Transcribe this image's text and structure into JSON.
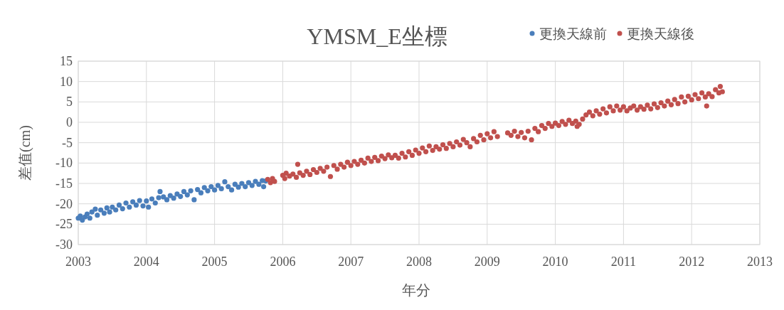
{
  "chart_data": {
    "type": "scatter",
    "title": "YMSM_E坐標",
    "xlabel": "年分",
    "ylabel": "差值(cm)",
    "xlim": [
      2003,
      2013
    ],
    "ylim": [
      -30,
      15
    ],
    "xticks": [
      2003,
      2004,
      2005,
      2006,
      2007,
      2008,
      2009,
      2010,
      2011,
      2012,
      2013
    ],
    "yticks": [
      -30,
      -25,
      -20,
      -15,
      -10,
      -5,
      0,
      5,
      10,
      15
    ],
    "grid": true,
    "legend": "top right",
    "marker": "circle",
    "series": [
      {
        "name": "更換天線前",
        "color": "#4a7ebb",
        "x": [
          2003.0,
          2003.03,
          2003.06,
          2003.1,
          2003.13,
          2003.17,
          2003.2,
          2003.25,
          2003.28,
          2003.33,
          2003.38,
          2003.42,
          2003.46,
          2003.5,
          2003.55,
          2003.6,
          2003.65,
          2003.7,
          2003.75,
          2003.8,
          2003.85,
          2003.9,
          2003.95,
          2004.0,
          2004.03,
          2004.08,
          2004.13,
          2004.18,
          2004.2,
          2004.25,
          2004.3,
          2004.35,
          2004.4,
          2004.45,
          2004.5,
          2004.55,
          2004.6,
          2004.65,
          2004.7,
          2004.75,
          2004.8,
          2004.85,
          2004.9,
          2004.95,
          2005.0,
          2005.05,
          2005.1,
          2005.15,
          2005.2,
          2005.25,
          2005.3,
          2005.35,
          2005.4,
          2005.45,
          2005.5,
          2005.55,
          2005.6,
          2005.65,
          2005.7,
          2005.72,
          2005.75
        ],
        "values": [
          -23.5,
          -23.0,
          -24.0,
          -23.2,
          -22.5,
          -23.5,
          -22.0,
          -21.3,
          -22.8,
          -21.5,
          -22.3,
          -21.0,
          -22.0,
          -20.8,
          -21.5,
          -20.3,
          -21.2,
          -19.8,
          -20.8,
          -19.5,
          -20.3,
          -19.2,
          -20.5,
          -19.3,
          -20.8,
          -18.8,
          -19.8,
          -18.5,
          -17.0,
          -18.3,
          -19.0,
          -18.0,
          -18.6,
          -17.6,
          -18.2,
          -17.0,
          -17.8,
          -16.8,
          -19.0,
          -16.5,
          -17.3,
          -16.0,
          -16.8,
          -15.8,
          -16.6,
          -15.5,
          -16.3,
          -14.6,
          -15.8,
          -16.6,
          -15.2,
          -15.9,
          -15.0,
          -15.8,
          -14.8,
          -15.5,
          -14.5,
          -15.2,
          -14.3,
          -15.8,
          -14.4
        ]
      },
      {
        "name": "更換天線後",
        "color": "#c0504d",
        "x": [
          2005.78,
          2005.82,
          2005.85,
          2005.88,
          2006.0,
          2006.03,
          2006.05,
          2006.1,
          2006.15,
          2006.2,
          2006.22,
          2006.25,
          2006.3,
          2006.35,
          2006.4,
          2006.45,
          2006.5,
          2006.55,
          2006.6,
          2006.65,
          2006.7,
          2006.75,
          2006.8,
          2006.85,
          2006.9,
          2006.95,
          2007.0,
          2007.05,
          2007.1,
          2007.15,
          2007.2,
          2007.25,
          2007.3,
          2007.35,
          2007.4,
          2007.45,
          2007.5,
          2007.55,
          2007.6,
          2007.65,
          2007.7,
          2007.75,
          2007.8,
          2007.85,
          2007.9,
          2007.95,
          2008.0,
          2008.05,
          2008.1,
          2008.15,
          2008.2,
          2008.25,
          2008.3,
          2008.35,
          2008.4,
          2008.45,
          2008.5,
          2008.55,
          2008.6,
          2008.65,
          2008.7,
          2008.75,
          2008.8,
          2008.85,
          2008.9,
          2008.95,
          2009.0,
          2009.05,
          2009.1,
          2009.15,
          2009.3,
          2009.35,
          2009.4,
          2009.45,
          2009.5,
          2009.55,
          2009.6,
          2009.65,
          2009.7,
          2009.75,
          2009.8,
          2009.85,
          2009.9,
          2009.95,
          2010.0,
          2010.05,
          2010.1,
          2010.15,
          2010.2,
          2010.25,
          2010.3,
          2010.32,
          2010.35,
          2010.4,
          2010.45,
          2010.5,
          2010.55,
          2010.6,
          2010.65,
          2010.7,
          2010.75,
          2010.8,
          2010.85,
          2010.9,
          2010.95,
          2011.0,
          2011.05,
          2011.1,
          2011.15,
          2011.2,
          2011.25,
          2011.3,
          2011.35,
          2011.4,
          2011.45,
          2011.5,
          2011.55,
          2011.6,
          2011.65,
          2011.7,
          2011.75,
          2011.8,
          2011.85,
          2011.9,
          2011.95,
          2012.0,
          2012.05,
          2012.1,
          2012.15,
          2012.2,
          2012.22,
          2012.25,
          2012.3,
          2012.35,
          2012.4,
          2012.42,
          2012.45
        ],
        "values": [
          -14.0,
          -14.8,
          -13.8,
          -14.5,
          -13.0,
          -13.8,
          -12.5,
          -13.2,
          -12.7,
          -13.5,
          -10.3,
          -12.4,
          -13.0,
          -12.0,
          -12.8,
          -11.6,
          -12.3,
          -11.3,
          -12.0,
          -11.0,
          -13.3,
          -10.6,
          -11.5,
          -10.3,
          -11.0,
          -9.8,
          -10.6,
          -9.6,
          -10.3,
          -9.3,
          -10.0,
          -8.8,
          -9.6,
          -8.6,
          -9.4,
          -8.3,
          -8.9,
          -8.0,
          -8.7,
          -8.1,
          -8.8,
          -7.6,
          -8.5,
          -7.2,
          -8.1,
          -6.8,
          -7.6,
          -6.3,
          -7.2,
          -5.8,
          -6.9,
          -6.0,
          -6.6,
          -5.5,
          -6.4,
          -5.2,
          -6.0,
          -4.8,
          -5.6,
          -4.2,
          -5.0,
          -6.0,
          -4.0,
          -4.8,
          -3.2,
          -4.3,
          -2.8,
          -3.8,
          -2.3,
          -3.5,
          -2.6,
          -3.2,
          -2.2,
          -3.5,
          -2.5,
          -3.8,
          -2.2,
          -4.3,
          -1.5,
          -2.3,
          -0.8,
          -1.5,
          -0.3,
          -1.0,
          -0.2,
          -0.8,
          0.2,
          -0.5,
          0.5,
          -0.3,
          0.3,
          -1.0,
          -0.5,
          0.8,
          1.8,
          2.5,
          1.6,
          2.8,
          2.0,
          3.3,
          2.3,
          3.8,
          2.8,
          4.0,
          3.0,
          3.8,
          2.8,
          3.5,
          4.0,
          3.0,
          3.8,
          3.2,
          4.2,
          3.3,
          4.5,
          3.6,
          4.8,
          4.0,
          5.2,
          4.3,
          5.6,
          4.6,
          6.2,
          5.0,
          6.4,
          5.5,
          6.8,
          5.8,
          7.2,
          6.2,
          4.0,
          7.0,
          6.3,
          8.0,
          7.2,
          8.8,
          7.5
        ]
      }
    ]
  }
}
